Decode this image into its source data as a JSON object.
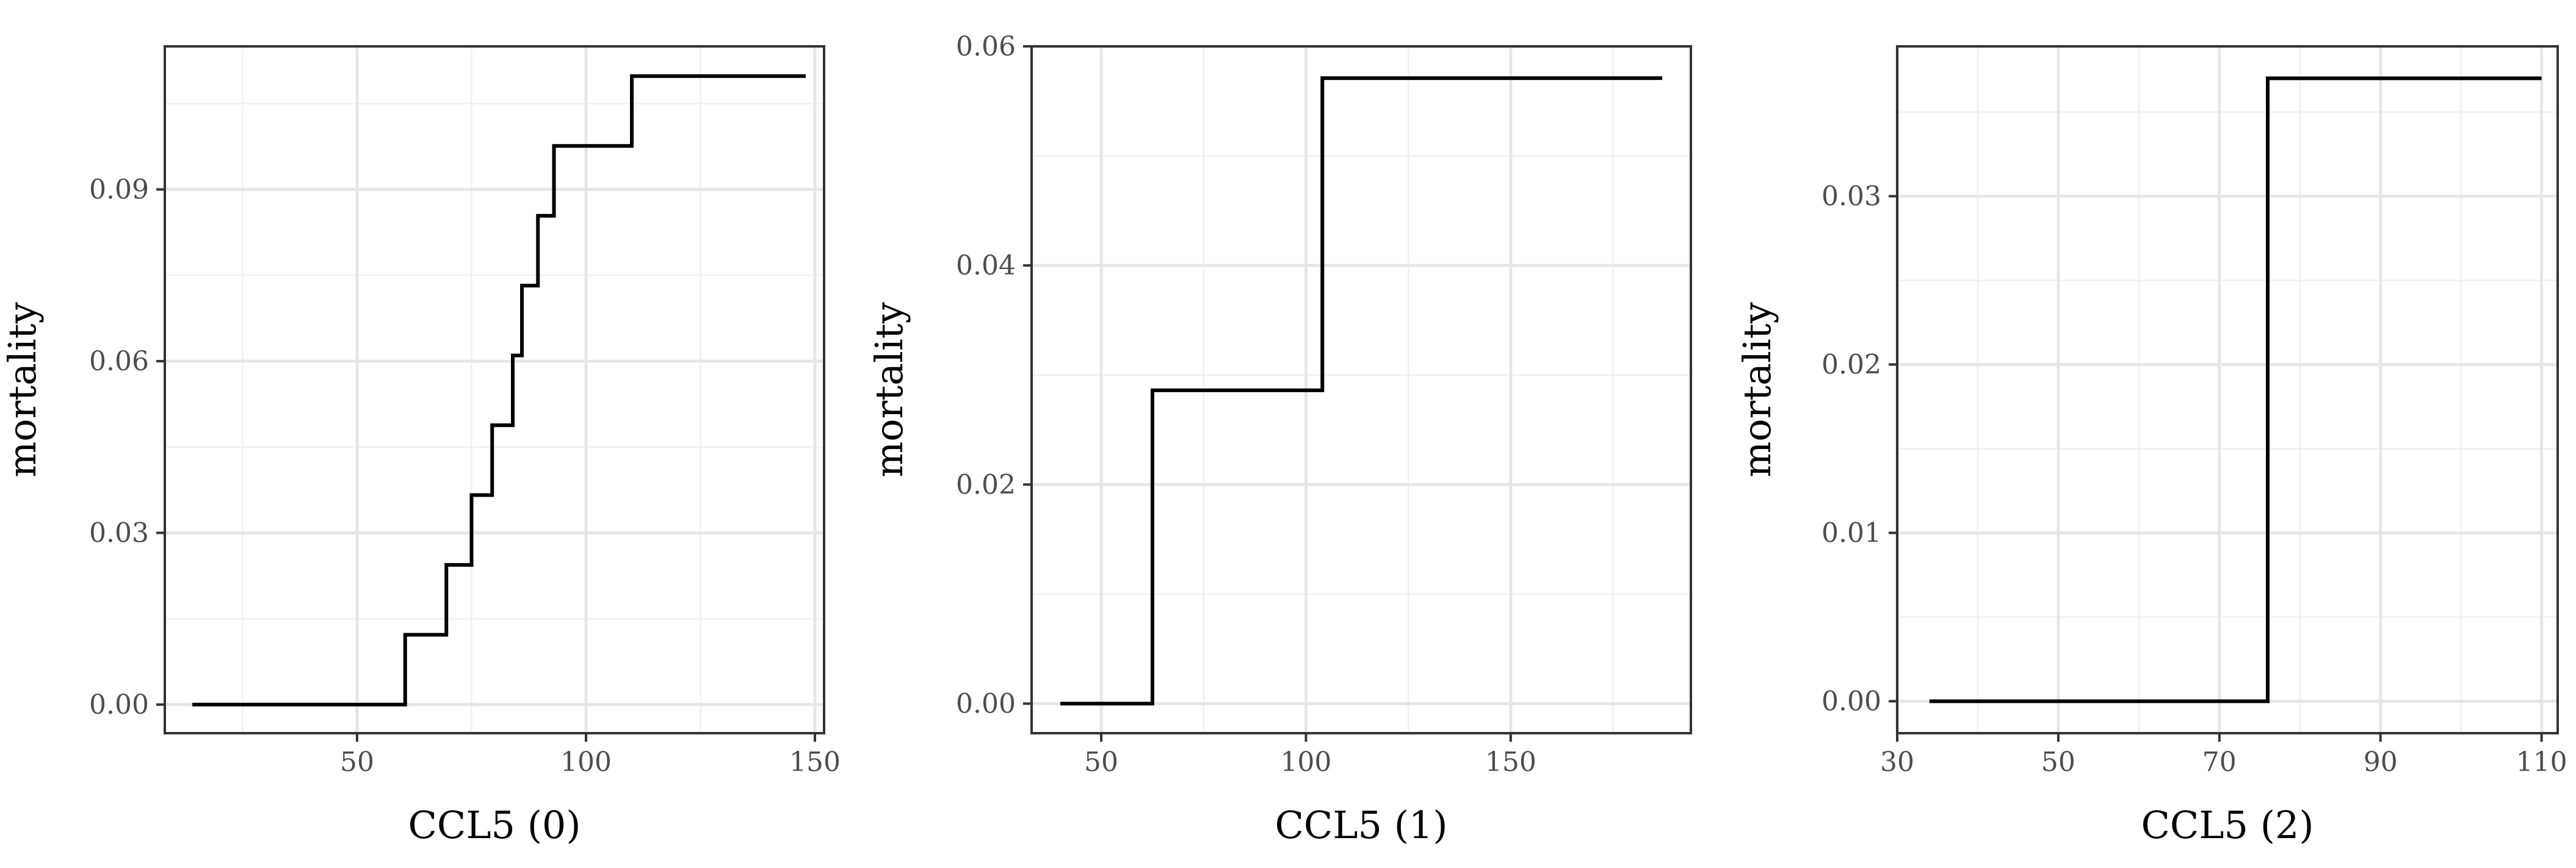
{
  "chart_data": [
    {
      "type": "line",
      "step": true,
      "xlabel": "CCL5 (0)",
      "ylabel": "mortality",
      "xlim": [
        8,
        152
      ],
      "ylim": [
        -0.005,
        0.115
      ],
      "xticks": [
        50,
        100,
        150
      ],
      "yticks": [
        0.0,
        0.03,
        0.06,
        0.09
      ],
      "xtick_labels": [
        "50",
        "100",
        "150"
      ],
      "ytick_labels": [
        "0.00",
        "0.03",
        "0.06",
        "0.09"
      ],
      "grid": true,
      "series": [
        {
          "x": [
            14,
            60.5,
            69.5,
            75,
            79.5,
            84,
            86,
            89.5,
            93,
            110,
            148
          ],
          "y": [
            0.0,
            0.0122,
            0.0244,
            0.0366,
            0.0488,
            0.061,
            0.0732,
            0.0854,
            0.0976,
            0.1098,
            0.1098
          ]
        }
      ]
    },
    {
      "type": "line",
      "step": true,
      "xlabel": "CCL5 (1)",
      "ylabel": "mortality",
      "xlim": [
        33,
        194
      ],
      "ylim": [
        -0.0027,
        0.06
      ],
      "xticks": [
        50,
        100,
        150
      ],
      "yticks": [
        0.0,
        0.02,
        0.04,
        0.06
      ],
      "xtick_labels": [
        "50",
        "100",
        "150"
      ],
      "ytick_labels": [
        "0.00",
        "0.02",
        "0.04",
        "0.06"
      ],
      "grid": true,
      "series": [
        {
          "x": [
            40,
            62.5,
            104,
            187
          ],
          "y": [
            0.0,
            0.0286,
            0.0571,
            0.0571
          ]
        }
      ]
    },
    {
      "type": "line",
      "step": true,
      "xlabel": "CCL5 (2)",
      "ylabel": "mortality",
      "xlim": [
        30,
        112
      ],
      "ylim": [
        -0.0019,
        0.0389
      ],
      "xticks": [
        30,
        50,
        70,
        90,
        110
      ],
      "yticks": [
        0.0,
        0.01,
        0.02,
        0.03
      ],
      "xtick_labels": [
        "30",
        "50",
        "70",
        "90",
        "110"
      ],
      "ytick_labels": [
        "0.00",
        "0.01",
        "0.02",
        "0.03"
      ],
      "grid": true,
      "series": [
        {
          "x": [
            34,
            76,
            110
          ],
          "y": [
            0.0,
            0.037,
            0.037
          ]
        }
      ]
    }
  ]
}
